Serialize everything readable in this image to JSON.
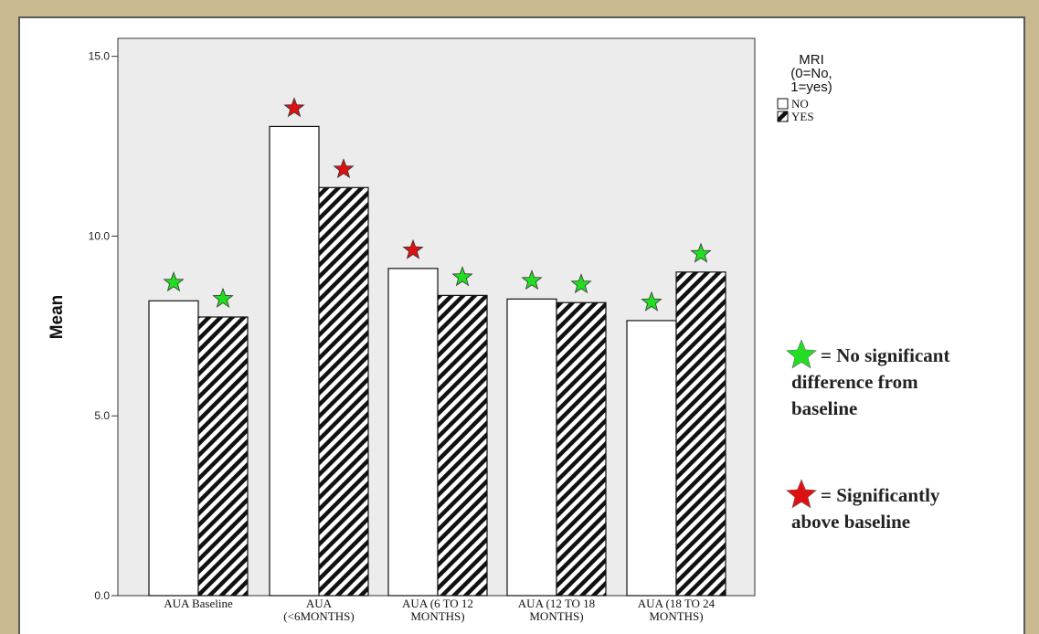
{
  "chart_data": {
    "type": "bar",
    "ylabel": "Mean",
    "ylim": [
      0,
      15.5
    ],
    "yticks": [
      "0.0",
      "5.0",
      "10.0",
      "15.0"
    ],
    "categories": [
      "AUA Baseline",
      "AUA (<6MONTHS)",
      "AUA (6 TO 12 MONTHS)",
      "AUA (12 TO 18 MONTHS)",
      "AUA (18 TO 24 MONTHS)"
    ],
    "category_lines": [
      [
        "AUA Baseline"
      ],
      [
        "AUA",
        "(<6MONTHS)"
      ],
      [
        "AUA (6 TO 12",
        "MONTHS)"
      ],
      [
        "AUA (12 TO 18",
        "MONTHS)"
      ],
      [
        "AUA (18 TO 24",
        "MONTHS)"
      ]
    ],
    "series": [
      {
        "name": "NO",
        "values": [
          8.2,
          13.05,
          9.1,
          8.25,
          7.65
        ],
        "fill": "white"
      },
      {
        "name": "YES",
        "values": [
          7.75,
          11.35,
          8.35,
          8.15,
          9.0
        ],
        "fill": "hatched"
      }
    ],
    "significance": {
      "NO": [
        "none",
        "significant",
        "significant",
        "none",
        "none"
      ],
      "YES": [
        "none",
        "significant",
        "none",
        "none",
        "none"
      ]
    },
    "legend": {
      "title_lines": [
        "MRI",
        "(0=No,",
        "1=yes)"
      ],
      "entries": [
        "NO",
        "YES"
      ],
      "placement": "top-right"
    },
    "annotations": {
      "green": {
        "text_lines": [
          "= No significant",
          "difference from",
          "baseline"
        ]
      },
      "red": {
        "text_lines": [
          "= Significantly",
          "above baseline"
        ]
      }
    },
    "colors": {
      "plot_bg": "#ececec",
      "green_star": "#22dd22",
      "red_star": "#dd1111",
      "frame_bg": "#c8b98e"
    }
  }
}
